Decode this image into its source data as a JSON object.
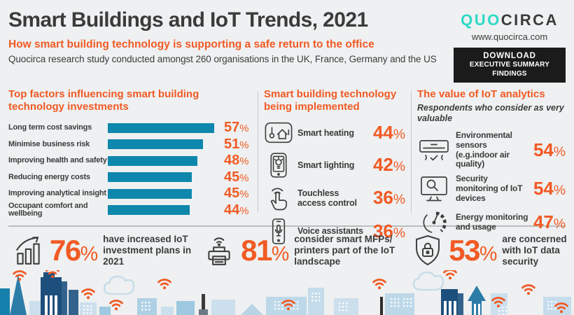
{
  "palette": {
    "orange": "#f15a24",
    "dark": "#3b3b3b",
    "bar": "#0e87ad",
    "teal": "#2fd9c6",
    "bg": "#eef0f1"
  },
  "header": {
    "title": "Smart Buildings and IoT Trends, 2021",
    "subtitle": "How smart building technology is supporting a safe return to the office",
    "description": "Quocirca research study conducted amongst 260 organisations in the UK, France, Germany and the US",
    "logo": {
      "part1": "QUO",
      "part2": "CIRCA"
    },
    "website": "www.quocirca.com",
    "download_button": {
      "line1": "DOWNLOAD",
      "line2": "EXECUTIVE SUMMARY FINDINGS"
    }
  },
  "chart_data": [
    {
      "type": "bar",
      "orientation": "horizontal",
      "title": "Top factors influencing smart building technology investments",
      "categories": [
        "Long term cost savings",
        "Minimise business risk",
        "Improving health and safety",
        "Reducing energy costs",
        "Improving analytical insight",
        "Occupant comfort and wellbeing"
      ],
      "values": [
        57,
        51,
        48,
        45,
        45,
        44
      ],
      "unit": "%",
      "xlim": [
        0,
        60
      ],
      "grid": false,
      "bar_color": "#0e87ad",
      "value_label_color": "#f15a24"
    },
    {
      "type": "table",
      "title": "Smart building technology being implemented",
      "unit": "%",
      "rows": [
        {
          "icon": "smart-heating-icon",
          "label": "Smart heating",
          "value": 44
        },
        {
          "icon": "smart-lighting-icon",
          "label": "Smart lighting",
          "value": 42
        },
        {
          "icon": "touchless-access-icon",
          "label": "Touchless access control",
          "value": 36
        },
        {
          "icon": "voice-assistant-icon",
          "label": "Voice assistants",
          "value": 36
        }
      ]
    },
    {
      "type": "table",
      "title": "The value of IoT analytics",
      "subtitle": "Respondents who consider as very valuable",
      "unit": "%",
      "rows": [
        {
          "icon": "air-conditioner-icon",
          "label": "Environmental sensors (e.g.indoor air quality)",
          "value": 54
        },
        {
          "icon": "security-monitor-icon",
          "label": "Security monitoring of IoT devices",
          "value": 54
        },
        {
          "icon": "energy-gauge-icon",
          "label": "Energy monitoring and usage",
          "value": 47
        }
      ]
    }
  ],
  "headline_stats": [
    {
      "icon": "growth-chart-icon",
      "value": 76,
      "unit": "%",
      "text": "have increased IoT investment plans in 2021"
    },
    {
      "icon": "wireless-printer-icon",
      "value": 81,
      "unit": "%",
      "text": "consider smart MFPs/ printers part of the IoT landscape"
    },
    {
      "icon": "shield-lock-icon",
      "value": 53,
      "unit": "%",
      "text": "are concerned with IoT data security"
    }
  ]
}
